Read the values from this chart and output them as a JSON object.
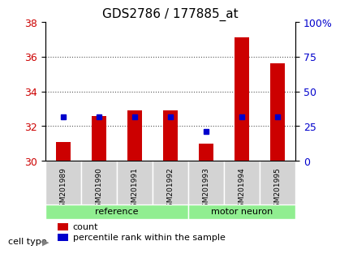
{
  "title": "GDS2786 / 177885_at",
  "samples": [
    "GSM201989",
    "GSM201990",
    "GSM201991",
    "GSM201992",
    "GSM201993",
    "GSM201994",
    "GSM201995"
  ],
  "cell_types": [
    "reference",
    "reference",
    "reference",
    "reference",
    "motor neuron",
    "motor neuron",
    "motor neuron"
  ],
  "counts": [
    31.1,
    32.6,
    32.9,
    32.9,
    31.0,
    37.1,
    35.6
  ],
  "percentile_ranks": [
    31.7,
    31.7,
    31.7,
    31.8,
    21.4,
    31.8,
    31.7
  ],
  "ylim_left": [
    30,
    38
  ],
  "ylim_right": [
    0,
    100
  ],
  "yticks_left": [
    30,
    32,
    34,
    36,
    38
  ],
  "yticks_right": [
    0,
    25,
    50,
    75,
    100
  ],
  "ytick_labels_right": [
    "0",
    "25",
    "50",
    "75",
    "100%"
  ],
  "bar_color": "#cc0000",
  "dot_color": "#0000cc",
  "bar_width": 0.4,
  "ref_color": "#90ee90",
  "motor_color": "#90ee90",
  "tick_area_color": "#cccccc",
  "ref_label": "reference",
  "motor_label": "motor neuron",
  "legend_count": "count",
  "legend_pct": "percentile rank within the sample",
  "cell_type_label": "cell type",
  "dotted_grid_color": "#555555",
  "baseline": 30
}
